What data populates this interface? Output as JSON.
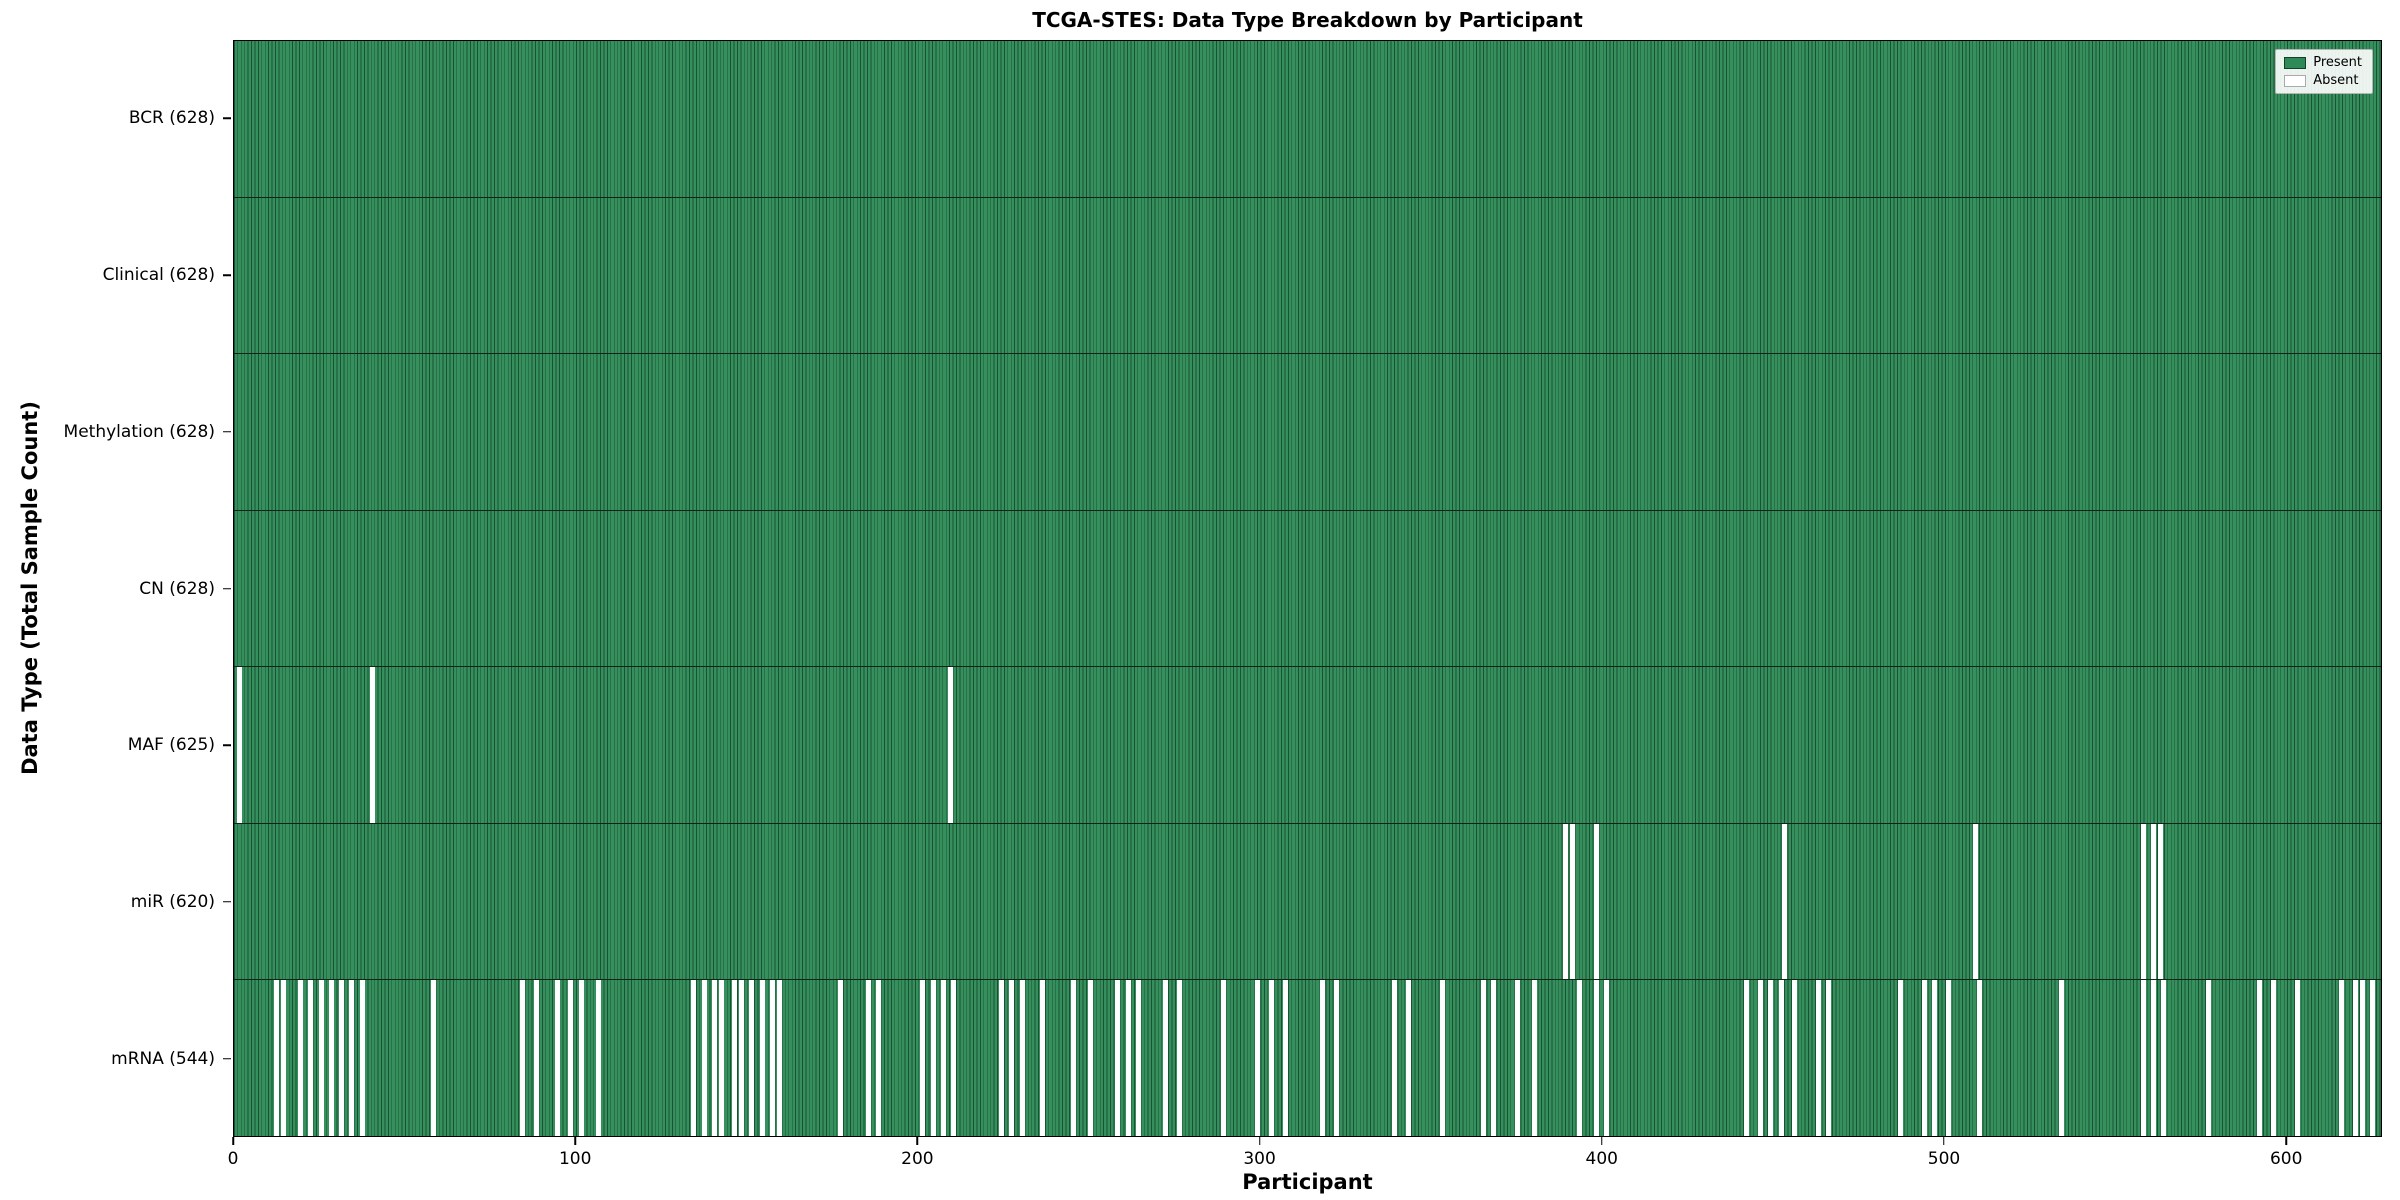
{
  "chart_data": {
    "type": "heatmap",
    "title": "TCGA-STES: Data Type Breakdown by Participant",
    "xlabel": "Participant",
    "ylabel": "Data Type (Total Sample Count)",
    "n_participants": 628,
    "x_ticks": [
      0,
      100,
      200,
      300,
      400,
      500,
      600
    ],
    "xlim": [
      0,
      628
    ],
    "grid": false,
    "legend": {
      "position": "upper right",
      "entries": [
        {
          "label": "Present",
          "color": "#2e8b57"
        },
        {
          "label": "Absent",
          "color": "#ffffff"
        }
      ]
    },
    "colors": {
      "present": "#2e8b57",
      "absent": "#ffffff",
      "bar_edge": "#0d2417"
    },
    "rows": [
      {
        "name": "BCR",
        "label": "BCR (628)",
        "present_count": 628,
        "absent_participants": []
      },
      {
        "name": "Clinical",
        "label": "Clinical (628)",
        "present_count": 628,
        "absent_participants": []
      },
      {
        "name": "Methylation",
        "label": "Methylation (628)",
        "present_count": 628,
        "absent_participants": []
      },
      {
        "name": "CN",
        "label": "CN (628)",
        "present_count": 628,
        "absent_participants": []
      },
      {
        "name": "MAF",
        "label": "MAF (625)",
        "present_count": 625,
        "absent_participants": [
          1,
          40,
          209
        ]
      },
      {
        "name": "miR",
        "label": "miR (620)",
        "present_count": 620,
        "absent_participants": [
          389,
          391,
          398,
          453,
          509,
          558,
          561,
          563
        ]
      },
      {
        "name": "mRNA",
        "label": "mRNA (544)",
        "present_count": 544,
        "absent_participants": [
          12,
          14,
          19,
          22,
          25,
          28,
          31,
          34,
          37,
          58,
          84,
          88,
          94,
          98,
          101,
          106,
          134,
          137,
          140,
          142,
          146,
          148,
          151,
          154,
          157,
          159,
          177,
          185,
          188,
          201,
          204,
          207,
          210,
          224,
          227,
          230,
          236,
          245,
          250,
          258,
          261,
          264,
          272,
          276,
          289,
          299,
          303,
          307,
          318,
          322,
          339,
          343,
          353,
          365,
          368,
          375,
          380,
          393,
          398,
          401,
          442,
          446,
          449,
          452,
          456,
          463,
          466,
          487,
          494,
          497,
          501,
          510,
          534,
          558,
          561,
          564,
          577,
          592,
          596,
          603,
          616,
          620,
          622,
          625
        ]
      }
    ]
  }
}
